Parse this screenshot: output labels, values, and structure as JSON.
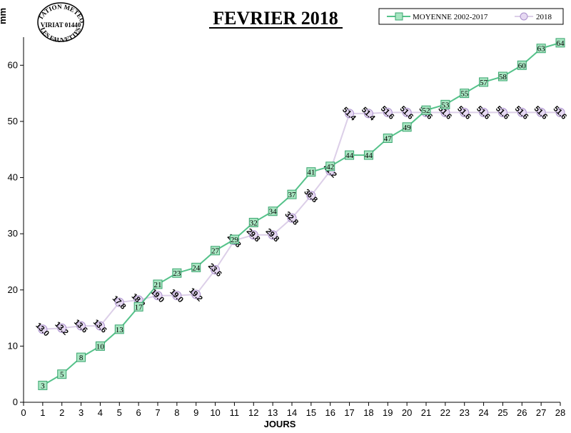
{
  "stamp": {
    "line1": "STATION METEO",
    "line2": "VIRIAT 01440",
    "line3": "LES FAUVETTES"
  },
  "colors": {
    "average_line": "#55c28a",
    "average_marker_fill": "#a8e6c2",
    "average_marker_stroke": "#3aa56f",
    "series2018_line": "#dccfe8",
    "series2018_marker_fill": "#e6d9f2",
    "series2018_marker_stroke": "#a98fcc"
  },
  "chart_data": {
    "type": "line",
    "title": "FEVRIER 2018",
    "xlabel": "JOURS",
    "ylabel": "mm",
    "xlim": [
      0,
      28
    ],
    "ylim": [
      0,
      65
    ],
    "x_ticks": [
      0,
      1,
      2,
      3,
      4,
      5,
      6,
      7,
      8,
      9,
      10,
      11,
      12,
      13,
      14,
      15,
      16,
      17,
      18,
      19,
      20,
      21,
      22,
      23,
      24,
      25,
      26,
      27,
      28
    ],
    "y_ticks": [
      0,
      10,
      20,
      30,
      40,
      50,
      60
    ],
    "grid": false,
    "legend_position": "top-right",
    "series": [
      {
        "name": "MOYENNE 2002-2017",
        "marker": "square",
        "x": [
          1,
          2,
          3,
          4,
          5,
          6,
          7,
          8,
          9,
          10,
          11,
          12,
          13,
          14,
          15,
          16,
          17,
          18,
          19,
          20,
          21,
          22,
          23,
          24,
          25,
          26,
          27,
          28
        ],
        "values": [
          3,
          5,
          8,
          10,
          13,
          17,
          21,
          23,
          24,
          27,
          29,
          32,
          34,
          37,
          41,
          42,
          44,
          44,
          47,
          49,
          52,
          53,
          55,
          57,
          58,
          60,
          63,
          64
        ],
        "labels": [
          "3",
          "5",
          "8",
          "10",
          "13",
          "17",
          "21",
          "23",
          "24",
          "27",
          "29",
          "32",
          "34",
          "37",
          "41",
          "42",
          "44",
          "44",
          "47",
          "49",
          "52",
          "53",
          "55",
          "57",
          "58",
          "60",
          "63",
          "64"
        ]
      },
      {
        "name": "2018",
        "marker": "circle",
        "x": [
          1,
          2,
          3,
          4,
          5,
          6,
          7,
          8,
          9,
          10,
          11,
          12,
          13,
          14,
          15,
          16,
          17,
          18,
          19,
          20,
          21,
          22,
          23,
          24,
          25,
          26,
          27,
          28
        ],
        "values": [
          13.0,
          13.2,
          13.6,
          13.6,
          17.8,
          18.2,
          19.0,
          19.0,
          19.2,
          23.6,
          28.8,
          29.8,
          29.8,
          32.8,
          36.8,
          41.2,
          51.4,
          51.4,
          51.6,
          51.6,
          51.6,
          51.6,
          51.6,
          51.6,
          51.6,
          51.6,
          51.6,
          51.6
        ],
        "labels": [
          "13.0",
          "13.2",
          "13.6",
          "13.6",
          "17.8",
          "18.2",
          "19.0",
          "19.0",
          "19.2",
          "23.6",
          "28.8",
          "29.8",
          "29.8",
          "32.8",
          "36.8",
          "41.2",
          "51.4",
          "51.4",
          "51.6",
          "51.6",
          "51.6",
          "51.6",
          "51.6",
          "51.6",
          "51.6",
          "51.6",
          "51.6",
          "51.6"
        ]
      }
    ]
  }
}
